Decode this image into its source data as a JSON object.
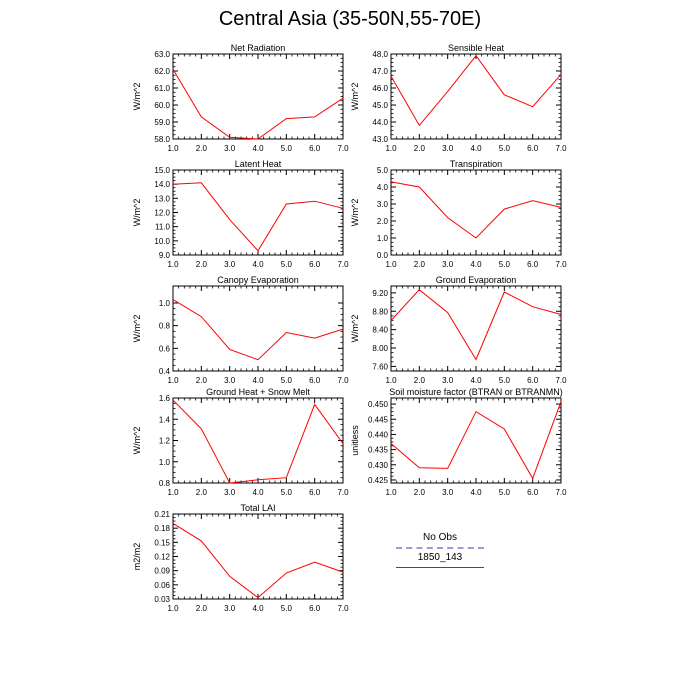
{
  "title": "Central Asia (35-50N,55-70E)",
  "colors": {
    "model": "#ff0000",
    "obs": "#9999dd",
    "axis": "#000000"
  },
  "legend": {
    "obs_label": "No Obs",
    "model_label": "1850_143"
  },
  "chart_data": [
    {
      "type": "line",
      "title": "Net Radiation",
      "ylabel": "W/m^2",
      "x": [
        1,
        2,
        3,
        4,
        5,
        6,
        7
      ],
      "xlim": [
        1,
        7
      ],
      "ylim": [
        58,
        63
      ],
      "xticks": [
        "1.0",
        "2.0",
        "3.0",
        "4.0",
        "5.0",
        "6.0",
        "7.0"
      ],
      "yticks": [
        "58.0",
        "59.0",
        "60.0",
        "61.0",
        "62.0",
        "63.0"
      ],
      "series": [
        {
          "values": [
            62.1,
            59.3,
            58.1,
            58.0,
            59.2,
            59.3,
            60.4
          ]
        }
      ]
    },
    {
      "type": "line",
      "title": "Sensible Heat",
      "ylabel": "W/m^2",
      "x": [
        1,
        2,
        3,
        4,
        5,
        6,
        7
      ],
      "xlim": [
        1,
        7
      ],
      "ylim": [
        43,
        48
      ],
      "xticks": [
        "1.0",
        "2.0",
        "3.0",
        "4.0",
        "5.0",
        "6.0",
        "7.0"
      ],
      "yticks": [
        "43.0",
        "44.0",
        "45.0",
        "46.0",
        "47.0",
        "48.0"
      ],
      "series": [
        {
          "values": [
            46.7,
            43.8,
            45.8,
            47.9,
            45.6,
            44.9,
            46.8
          ]
        }
      ]
    },
    {
      "type": "line",
      "title": "Latent Heat",
      "ylabel": "W/m^2",
      "x": [
        1,
        2,
        3,
        4,
        5,
        6,
        7
      ],
      "xlim": [
        1,
        7
      ],
      "ylim": [
        9,
        15
      ],
      "xticks": [
        "1.0",
        "2.0",
        "3.0",
        "4.0",
        "5.0",
        "6.0",
        "7.0"
      ],
      "yticks": [
        "9.0",
        "10.0",
        "11.0",
        "12.0",
        "13.0",
        "14.0",
        "15.0"
      ],
      "series": [
        {
          "values": [
            14.0,
            14.1,
            11.5,
            9.3,
            12.6,
            12.8,
            12.3
          ]
        }
      ]
    },
    {
      "type": "line",
      "title": "Transpiration",
      "ylabel": "W/m^2",
      "x": [
        1,
        2,
        3,
        4,
        5,
        6,
        7
      ],
      "xlim": [
        1,
        7
      ],
      "ylim": [
        0,
        5
      ],
      "xticks": [
        "1.0",
        "2.0",
        "3.0",
        "4.0",
        "5.0",
        "6.0",
        "7.0"
      ],
      "yticks": [
        "0.0",
        "1.0",
        "2.0",
        "3.0",
        "4.0",
        "5.0"
      ],
      "series": [
        {
          "values": [
            4.3,
            4.0,
            2.2,
            1.0,
            2.7,
            3.2,
            2.8
          ]
        }
      ]
    },
    {
      "type": "line",
      "title": "Canopy Evaporation",
      "ylabel": "W/m^2",
      "x": [
        1,
        2,
        3,
        4,
        5,
        6,
        7
      ],
      "xlim": [
        1,
        7
      ],
      "ylim": [
        0.4,
        1.15
      ],
      "xticks": [
        "1.0",
        "2.0",
        "3.0",
        "4.0",
        "5.0",
        "6.0",
        "7.0"
      ],
      "yticks": [
        "0.4",
        "0.6",
        "0.8",
        "1.0"
      ],
      "ytick_values": [
        0.4,
        0.6,
        0.8,
        1.0
      ],
      "series": [
        {
          "values": [
            1.03,
            0.88,
            0.59,
            0.5,
            0.74,
            0.69,
            0.77
          ]
        }
      ]
    },
    {
      "type": "line",
      "title": "Ground Evaporation",
      "ylabel": "W/m^2",
      "x": [
        1,
        2,
        3,
        4,
        5,
        6,
        7
      ],
      "xlim": [
        1,
        7
      ],
      "ylim": [
        7.5,
        9.35
      ],
      "xticks": [
        "1.0",
        "2.0",
        "3.0",
        "4.0",
        "5.0",
        "6.0",
        "7.0"
      ],
      "yticks": [
        "7.60",
        "8.00",
        "8.40",
        "8.80",
        "9.20"
      ],
      "ytick_values": [
        7.6,
        8.0,
        8.4,
        8.8,
        9.2
      ],
      "series": [
        {
          "values": [
            8.6,
            9.27,
            8.77,
            7.75,
            9.22,
            8.9,
            8.73
          ]
        }
      ]
    },
    {
      "type": "line",
      "title": "Ground Heat + Snow Melt",
      "ylabel": "W/m^2",
      "x": [
        1,
        2,
        3,
        4,
        5,
        6,
        7
      ],
      "xlim": [
        1,
        7
      ],
      "ylim": [
        0.8,
        1.6
      ],
      "xticks": [
        "1.0",
        "2.0",
        "3.0",
        "4.0",
        "5.0",
        "6.0",
        "7.0"
      ],
      "yticks": [
        "0.8",
        "1.0",
        "1.2",
        "1.4",
        "1.6"
      ],
      "series": [
        {
          "values": [
            1.58,
            1.31,
            0.8,
            0.83,
            0.85,
            1.54,
            1.17
          ]
        }
      ]
    },
    {
      "type": "line",
      "title": "Soil moisture factor (BTRAN or BTRANMN)",
      "ylabel": "unitless",
      "x": [
        1,
        2,
        3,
        4,
        5,
        6,
        7
      ],
      "xlim": [
        1,
        7
      ],
      "ylim": [
        0.424,
        0.452
      ],
      "xticks": [
        "1.0",
        "2.0",
        "3.0",
        "4.0",
        "5.0",
        "6.0",
        "7.0"
      ],
      "yticks": [
        "0.425",
        "0.430",
        "0.435",
        "0.440",
        "0.445",
        "0.450"
      ],
      "ytick_values": [
        0.425,
        0.43,
        0.435,
        0.44,
        0.445,
        0.45
      ],
      "series": [
        {
          "values": [
            0.437,
            0.429,
            0.4288,
            0.4475,
            0.4418,
            0.4255,
            0.4508
          ]
        }
      ]
    },
    {
      "type": "line",
      "title": "Total LAI",
      "ylabel": "m2/m2",
      "x": [
        1,
        2,
        3,
        4,
        5,
        6,
        7
      ],
      "xlim": [
        1,
        7
      ],
      "ylim": [
        0.03,
        0.21
      ],
      "xticks": [
        "1.0",
        "2.0",
        "3.0",
        "4.0",
        "5.0",
        "6.0",
        "7.0"
      ],
      "yticks": [
        "0.03",
        "0.06",
        "0.09",
        "0.12",
        "0.15",
        "0.18",
        "0.21"
      ],
      "series": [
        {
          "values": [
            0.19,
            0.153,
            0.078,
            0.033,
            0.085,
            0.108,
            0.087
          ]
        }
      ]
    }
  ]
}
